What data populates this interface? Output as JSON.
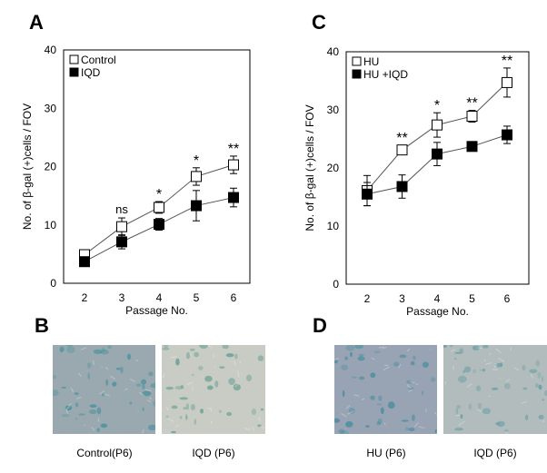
{
  "panels": {
    "a": "A",
    "b": "B",
    "c": "C",
    "d": "D"
  },
  "chart_data": [
    {
      "type": "line",
      "panel": "A",
      "xlabel": "Passage No.",
      "ylabel": "No. of  β-gal (+)cells / FOV",
      "ylim": [
        0,
        40
      ],
      "yticks": [
        0,
        10,
        20,
        30,
        40
      ],
      "x": [
        2,
        3,
        4,
        5,
        6
      ],
      "series": [
        {
          "name": "Control",
          "marker": "open-square",
          "values": [
            4.9,
            9.7,
            13.0,
            18.3,
            20.3
          ],
          "errors": [
            0.8,
            1.5,
            1.0,
            1.5,
            1.5
          ]
        },
        {
          "name": "IQD",
          "marker": "filled-square",
          "values": [
            3.7,
            7.1,
            10.1,
            13.3,
            14.7
          ],
          "errors": [
            0.5,
            1.2,
            1.0,
            2.6,
            1.6
          ]
        }
      ],
      "annotations": [
        "",
        "ns",
        "*",
        "*",
        "**"
      ],
      "legend": "top-left"
    },
    {
      "type": "line",
      "panel": "C",
      "xlabel": "Passage No.",
      "ylabel": "No. of  β-gal (+)cells / FOV",
      "ylim": [
        0,
        40
      ],
      "yticks": [
        0,
        10,
        20,
        30,
        40
      ],
      "x": [
        2,
        3,
        4,
        5,
        6
      ],
      "series": [
        {
          "name": "HU",
          "marker": "open-square",
          "values": [
            16.1,
            23.1,
            27.4,
            28.9,
            34.7
          ],
          "errors": [
            2.6,
            0.8,
            2.1,
            1.0,
            2.5
          ]
        },
        {
          "name": "HU +IQD",
          "marker": "filled-square",
          "values": [
            15.5,
            16.8,
            22.4,
            23.7,
            25.7
          ],
          "errors": [
            2.0,
            2.0,
            2.0,
            0.3,
            1.5
          ]
        }
      ],
      "annotations": [
        "",
        "**",
        "*",
        "**",
        "**"
      ],
      "legend": "top-left"
    }
  ],
  "images": [
    {
      "caption": "Control(P6)",
      "tone": "#9aa9b0",
      "stain": "#3f8f9a"
    },
    {
      "caption": "IQD (P6)",
      "tone": "#c9ccc4",
      "stain": "#5a9a90"
    },
    {
      "caption": "HU (P6)",
      "tone": "#98a4b3",
      "stain": "#3d8a9c"
    },
    {
      "caption": "IQD (P6)",
      "tone": "#b2bcbc",
      "stain": "#5a9aa0"
    }
  ]
}
